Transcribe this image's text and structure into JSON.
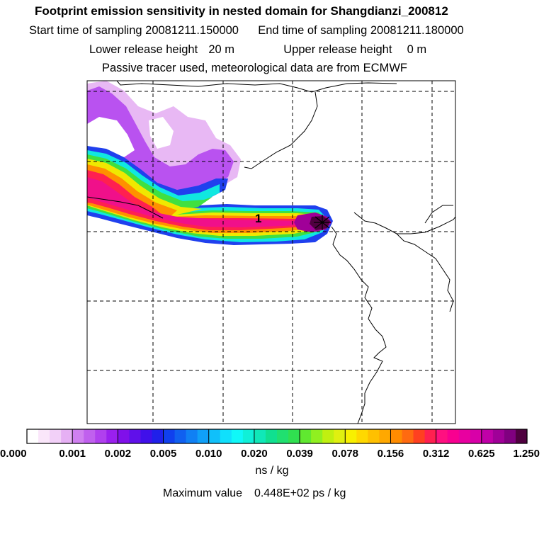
{
  "header": {
    "title": "Footprint emission sensitivity in nested domain for Shangdianzi_200812",
    "start_label": "Start time of sampling",
    "start_value": "20081211.150000",
    "end_label": "End time of sampling",
    "end_value": "20081211.180000",
    "lower_label": "Lower release height",
    "lower_value": "20 m",
    "upper_label": "Upper release height",
    "upper_value": "0 m",
    "tracer_note": "Passive tracer used, meteorological data are from ECMWF"
  },
  "map": {
    "release_label": "1",
    "release_marker": "star-icon",
    "colors": {
      "frame": "#000000",
      "grid": "#000000",
      "coast": "#000000"
    }
  },
  "colorbar": {
    "tick_labels": [
      "0.000",
      "0.001",
      "0.002",
      "0.005",
      "0.010",
      "0.020",
      "0.039",
      "0.078",
      "0.156",
      "0.312",
      "0.625",
      "1.250"
    ],
    "colors": [
      "#ffffff",
      "#fae6fa",
      "#f2d0f8",
      "#e6b0f4",
      "#d080f0",
      "#c060ee",
      "#b040ee",
      "#9a20ee",
      "#8010ea",
      "#6010ea",
      "#4010ea",
      "#2020ea",
      "#1040ee",
      "#1060f0",
      "#1080f4",
      "#10a0f8",
      "#10c0fa",
      "#10e0fc",
      "#10f8f8",
      "#10f0d8",
      "#10e8b8",
      "#10e090",
      "#20e070",
      "#30e050",
      "#60e830",
      "#90f020",
      "#c0f010",
      "#e0f010",
      "#f8f000",
      "#ffd800",
      "#ffc000",
      "#ffa800",
      "#ff8c00",
      "#ff6a10",
      "#ff4020",
      "#ff2050",
      "#ff1080",
      "#f80090",
      "#e800a0",
      "#d800a8",
      "#c000a8",
      "#a00098",
      "#800080",
      "#500040"
    ],
    "units": "ns / kg",
    "max_label": "Maximum value",
    "max_value": "0.448E+02 ps / kg"
  }
}
